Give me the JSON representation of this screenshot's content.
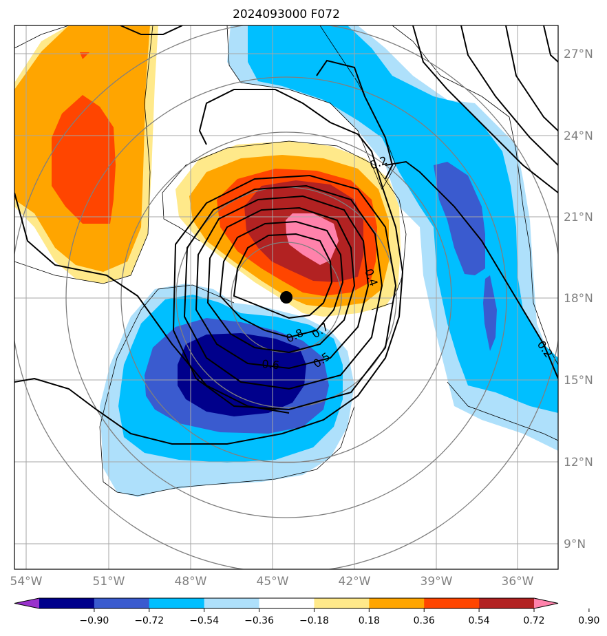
{
  "title": "2024093000 F072",
  "map": {
    "lon_ticks": [
      "54°W",
      "51°W",
      "48°W",
      "45°W",
      "42°W",
      "39°W",
      "36°W"
    ],
    "lat_ticks": [
      "27°N",
      "24°N",
      "21°N",
      "18°N",
      "15°N",
      "12°N",
      "9°N"
    ],
    "center_marker": "storm-center",
    "contour_labels": [
      "0.2",
      "0.4",
      "0.7",
      "0.8",
      "0.5",
      "0.6",
      "0.2"
    ]
  },
  "colorbar": {
    "ticks": [
      "−0.90",
      "−0.72",
      "−0.54",
      "−0.36",
      "−0.18",
      "0.18",
      "0.36",
      "0.54",
      "0.72",
      "0.90"
    ],
    "colors": [
      "#9932cc",
      "#00008b",
      "#3a5bcf",
      "#00bfff",
      "#aee0fb",
      "#ffffff",
      "#ffe98a",
      "#ffa500",
      "#ff4500",
      "#b22222",
      "#ff82ab"
    ]
  }
}
